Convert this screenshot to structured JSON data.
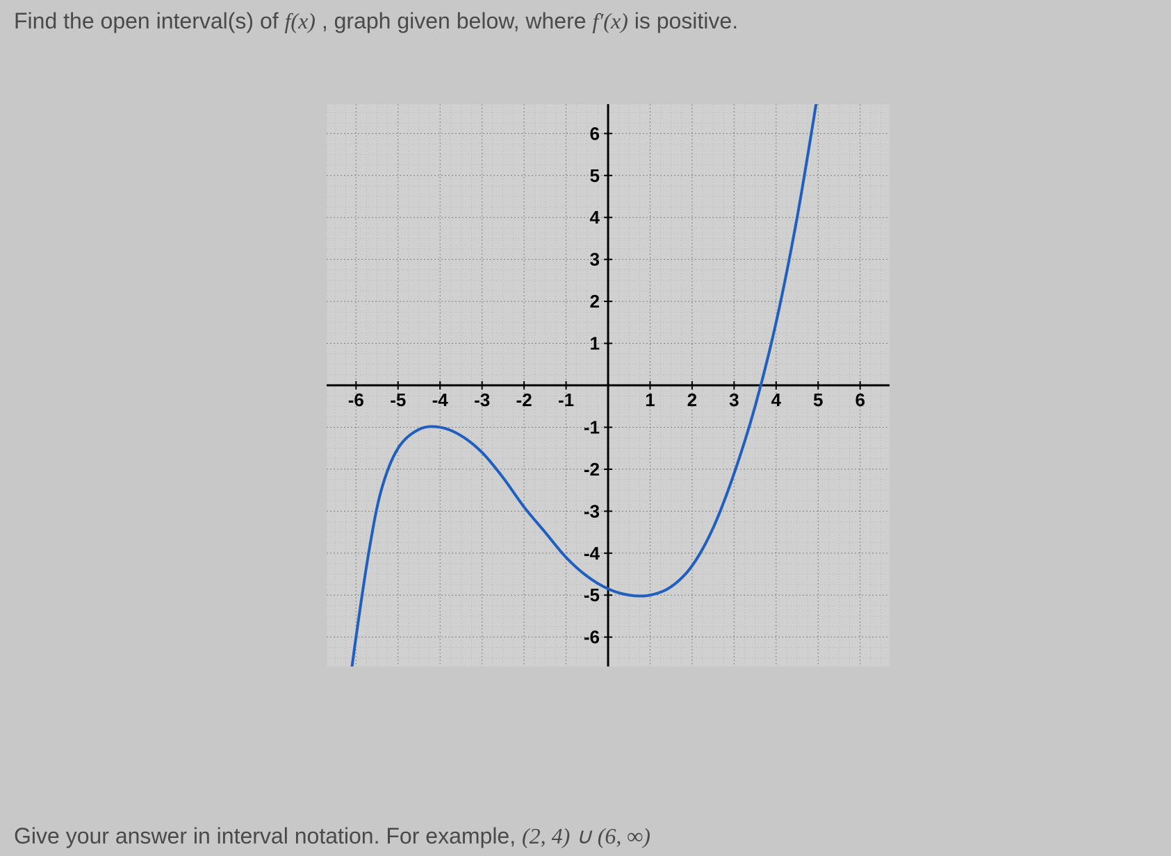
{
  "question": {
    "prefix": "Find the open interval(s) of ",
    "fx": "f(x)",
    "mid": ", graph given below, where ",
    "fpx": "f′(x)",
    "suffix": " is positive."
  },
  "answer_hint": {
    "prefix": "Give your answer in interval notation. For example, ",
    "example": "(2, 4) ∪ (6, ∞)"
  },
  "chart": {
    "type": "line",
    "xlim": [
      -6.7,
      6.7
    ],
    "ylim": [
      -6.7,
      6.7
    ],
    "xtick_labels": [
      "-6",
      "-5",
      "-4",
      "-3",
      "-2",
      "-1",
      "1",
      "2",
      "3",
      "4",
      "5",
      "6"
    ],
    "ytick_labels": [
      "-6",
      "-5",
      "-4",
      "-3",
      "-2",
      "-1",
      "1",
      "2",
      "3",
      "4",
      "5",
      "6"
    ],
    "xtick_positions": [
      -6,
      -5,
      -4,
      -3,
      -2,
      -1,
      1,
      2,
      3,
      4,
      5,
      6
    ],
    "ytick_positions": [
      -6,
      -5,
      -4,
      -3,
      -2,
      -1,
      1,
      2,
      3,
      4,
      5,
      6
    ],
    "major_grid_step": 1,
    "minor_grid_step": 0.25,
    "axis_color": "#000000",
    "major_grid_color": "#808080",
    "minor_grid_color": "#a0a0a0",
    "background_color": "#d0d0d0",
    "curve_color": "#1f5fbf",
    "curve_width": 4,
    "tick_font_size": 26,
    "tick_font_weight": "bold",
    "curve_points": [
      [
        -6.2,
        -7.5
      ],
      [
        -6.0,
        -6.0
      ],
      [
        -5.7,
        -4.0
      ],
      [
        -5.4,
        -2.5
      ],
      [
        -5.0,
        -1.5
      ],
      [
        -4.5,
        -1.05
      ],
      [
        -4.0,
        -1.0
      ],
      [
        -3.5,
        -1.2
      ],
      [
        -3.0,
        -1.6
      ],
      [
        -2.5,
        -2.2
      ],
      [
        -2.0,
        -2.9
      ],
      [
        -1.5,
        -3.5
      ],
      [
        -1.0,
        -4.1
      ],
      [
        -0.5,
        -4.55
      ],
      [
        0.0,
        -4.85
      ],
      [
        0.5,
        -5.0
      ],
      [
        1.0,
        -5.0
      ],
      [
        1.5,
        -4.8
      ],
      [
        2.0,
        -4.3
      ],
      [
        2.5,
        -3.4
      ],
      [
        3.0,
        -2.1
      ],
      [
        3.5,
        -0.5
      ],
      [
        4.0,
        1.5
      ],
      [
        4.5,
        4.0
      ],
      [
        5.0,
        7.0
      ]
    ]
  }
}
